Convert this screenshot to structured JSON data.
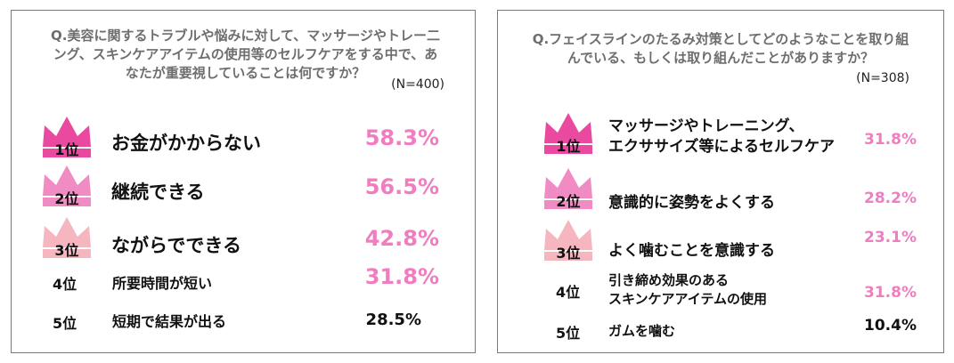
{
  "colors": {
    "rank1": "#e94aa0",
    "rank2": "#f08bc3",
    "rank3": "#f5b6c0",
    "value_pink": "#f07dc0",
    "value_dark": "#111111",
    "border": "#7a7a7a",
    "question": "#6e6e6e"
  },
  "chart_data": [
    {
      "type": "table",
      "title": "Q.美容に関するトラブルや悩みに対して、マッサージやトレーニング、スキンケアアイテムの使用等のセルフケアをする中で、あなたが重要視していることは何ですか？",
      "title_lines": [
        "Q.美容に関するトラブルや悩みに対して、マッサージやトレー二",
        "ング、スキンケアアイテムの使用等のセルフケアをする中で、あ",
        "なたが重要視していることは何ですか？"
      ],
      "sample": "(N=400)",
      "rows": [
        {
          "rank": "1位",
          "label": "お金がかからない",
          "value": 58.3,
          "value_text": "58.3%"
        },
        {
          "rank": "2位",
          "label": "継続できる",
          "value": 56.5,
          "value_text": "56.5%"
        },
        {
          "rank": "3位",
          "label": "ながらでできる",
          "value": 42.8,
          "value_text": "42.8%"
        },
        {
          "rank": "4位",
          "label": "所要時間が短い",
          "value": 31.8,
          "value_text": "31.8%"
        },
        {
          "rank": "5位",
          "label": "短期で結果が出る",
          "value": 28.5,
          "value_text": "28.5%"
        }
      ]
    },
    {
      "type": "table",
      "title": "Q.フェイスラインのたるみ対策としてどのようなことを取り組んでいる、もしくは取り組んだことがありますか？",
      "title_lines": [
        "Q.フェイスラインのたるみ対策としてどのようなことを取り組",
        "んでいる、もしくは取り組んだことがありますか？"
      ],
      "sample": "(N=308)",
      "rows": [
        {
          "rank": "1位",
          "label": "マッサージやトレーニング、エクササイズ等によるセルフケア",
          "label_lines": [
            "マッサージやトレーニング、",
            "エクササイズ等によるセルフケア"
          ],
          "value": 31.8,
          "value_text": "31.8%"
        },
        {
          "rank": "2位",
          "label": "意識的に姿勢をよくする",
          "value": 28.2,
          "value_text": "28.2%"
        },
        {
          "rank": "3位",
          "label": "よく噛むことを意識する",
          "value": 23.1,
          "value_text": "23.1%"
        },
        {
          "rank": "4位",
          "label": "引き締め効果のあるスキンケアアイテムの使用",
          "label_lines": [
            "引き締め効果のある",
            "スキンケアアイテムの使用"
          ],
          "value": 31.8,
          "value_text": "31.8%"
        },
        {
          "rank": "5位",
          "label": "ガムを噛む",
          "value": 10.4,
          "value_text": "10.4%"
        }
      ]
    }
  ]
}
